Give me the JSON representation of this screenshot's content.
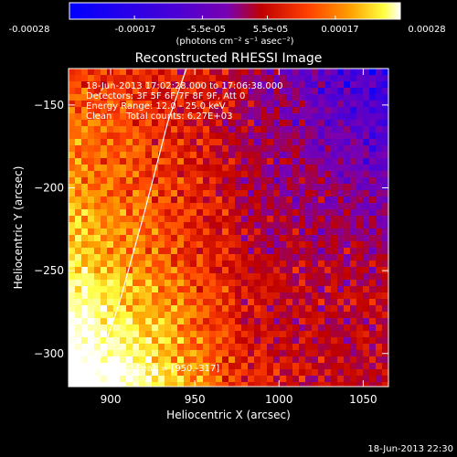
{
  "colorbar": {
    "tick_labels": [
      "-0.00028",
      "-0.00017",
      "-5.5e-05",
      "5.5e-05",
      "0.00017",
      "0.00028"
    ],
    "tick_values": [
      -0.00028,
      -0.00017,
      -5.5e-05,
      5.5e-05,
      0.00017,
      0.00028
    ],
    "range": [
      -0.00028,
      0.00028
    ],
    "unit_label": "(photons cm⁻² s⁻¹ asec⁻²)",
    "colors": [
      "#0000ff",
      "#4a00d6",
      "#7a00b0",
      "#c00000",
      "#ff4000",
      "#ffa000",
      "#ffff40",
      "#ffffff"
    ]
  },
  "chart_data": {
    "type": "heatmap",
    "title": "Reconstructed RHESSI Image",
    "xlabel": "Heliocentric X (arcsec)",
    "ylabel": "Heliocentric Y (arcsec)",
    "xlim": [
      875,
      1065
    ],
    "ylim": [
      -320,
      -128
    ],
    "xticks": [
      900,
      950,
      1000,
      1050
    ],
    "yticks": [
      -150,
      -200,
      -250,
      -300
    ],
    "xtick_labels": [
      "900",
      "950",
      "1000",
      "1050"
    ],
    "ytick_labels": [
      "−150",
      "−200",
      "−250",
      "−300"
    ],
    "grid": false,
    "limb_curve": [
      [
        888,
        -320
      ],
      [
        905,
        -270
      ],
      [
        920,
        -215
      ],
      [
        934,
        -160
      ],
      [
        945,
        -128
      ]
    ],
    "peak": [
      950,
      -317
    ],
    "annotations": {
      "time_range": "18-Jun-2013 17:02:28.000 to 17:06:38.000",
      "detectors": "Detectors: 3F 5F 6F 7F 8F 9F, Att 0",
      "energy_range": "Energy Range: 12.0 - 25.0 keV",
      "clean_counts": "Clean     Total counts: 6.27E+03",
      "peak_position": "Position of Peak = [950,-317]"
    }
  },
  "footer_timestamp": "18-Jun-2013 22:30"
}
